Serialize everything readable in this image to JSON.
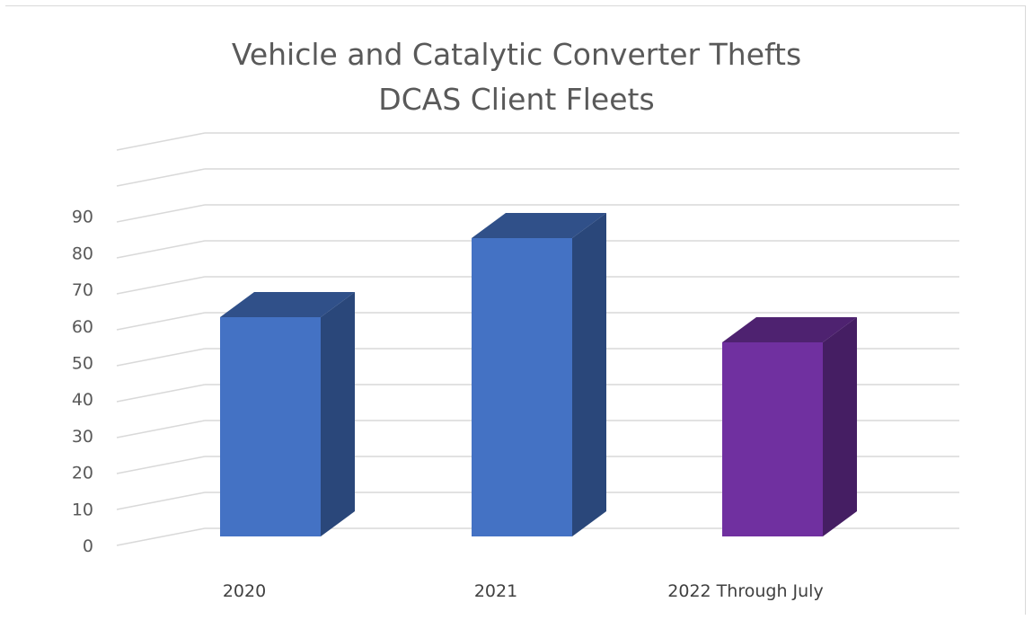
{
  "chart_data": {
    "type": "bar",
    "style": "3d-column",
    "title": [
      "Vehicle and Catalytic Converter Thefts",
      "DCAS Client Fleets"
    ],
    "categories": [
      "2020",
      "2021",
      "2022 Through July"
    ],
    "values": [
      61,
      83,
      54
    ],
    "bar_colors": [
      "#4472c4",
      "#4472c4",
      "#7030a0"
    ],
    "y_ticks": [
      0,
      10,
      20,
      30,
      40,
      50,
      60,
      70,
      80,
      90
    ],
    "ylim": [
      0,
      110
    ],
    "xlabel": "",
    "ylabel": "",
    "grid": true,
    "legend": "none"
  }
}
